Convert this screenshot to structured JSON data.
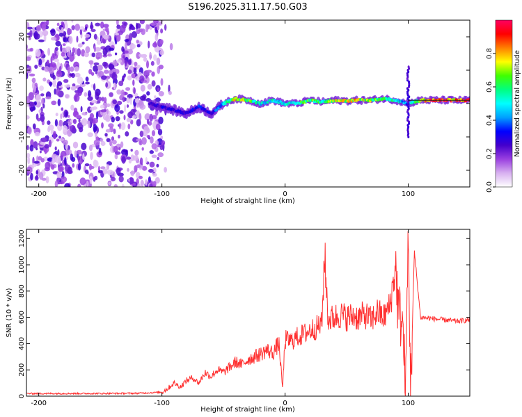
{
  "title": "S196.2025.311.17.50.G03",
  "chart_data": [
    {
      "type": "heatmap",
      "xlabel": "Height of straight line (km)",
      "ylabel": "Frequency (Hz)",
      "xlim": [
        -210,
        150
      ],
      "ylim": [
        -25,
        25
      ],
      "xticks": [
        -200,
        -100,
        0,
        100
      ],
      "yticks": [
        -20,
        -10,
        0,
        10,
        20
      ],
      "colorbar": {
        "label": "Normalized spectral amplitude",
        "range": [
          0,
          1
        ],
        "ticks": [
          "0.0",
          "0.2",
          "0.4",
          "0.6",
          "0.8"
        ],
        "colors": [
          "#ffffff",
          "#d8b0f0",
          "#9a40e0",
          "#4400cc",
          "#0000ff",
          "#00a0ff",
          "#00ffff",
          "#00ff80",
          "#40ff00",
          "#ffff00",
          "#ff8000",
          "#ff0000",
          "#ff0060"
        ]
      },
      "ridge": {
        "name": "frequency ridge",
        "x": [
          -110,
          -100,
          -90,
          -80,
          -70,
          -60,
          -50,
          -40,
          -30,
          -20,
          -10,
          0,
          10,
          20,
          30,
          40,
          50,
          60,
          70,
          80,
          90,
          100,
          110,
          120,
          130,
          140,
          150
        ],
        "y": [
          0,
          -1,
          -2,
          -3,
          -1,
          -3,
          0,
          1.5,
          1,
          0,
          1,
          0,
          0,
          1,
          0.5,
          1,
          0.8,
          1,
          1,
          1.5,
          1,
          0,
          1,
          1,
          1,
          1,
          1
        ],
        "amplitude": [
          0.25,
          0.3,
          0.3,
          0.3,
          0.35,
          0.3,
          0.5,
          0.8,
          0.7,
          0.5,
          0.55,
          0.5,
          0.6,
          0.7,
          0.6,
          0.75,
          0.75,
          0.8,
          0.7,
          0.6,
          0.55,
          0.4,
          0.85,
          0.95,
          0.95,
          0.9,
          0.9
        ]
      },
      "notes": "Broadband noise (amplitude ~0.1–0.25) fills all frequencies for heights < -100 km; single narrow ridge near 0 Hz for heights > -110 km; vertical streak near 100 km."
    },
    {
      "type": "line",
      "xlabel": "Height of straight line (km)",
      "ylabel": "SNR (10 * v/v)",
      "xlim": [
        -210,
        150
      ],
      "ylim": [
        0,
        1270
      ],
      "xticks": [
        -200,
        -100,
        0,
        100
      ],
      "yticks": [
        0,
        200,
        400,
        600,
        800,
        1000,
        1200
      ],
      "series": [
        {
          "name": "SNR",
          "color": "#ff3030",
          "x": [
            -210,
            -180,
            -150,
            -120,
            -100,
            -95,
            -90,
            -85,
            -80,
            -75,
            -70,
            -65,
            -60,
            -55,
            -50,
            -45,
            -40,
            -35,
            -30,
            -25,
            -20,
            -15,
            -10,
            -5,
            -2,
            0,
            5,
            10,
            15,
            20,
            25,
            30,
            32,
            35,
            40,
            45,
            50,
            55,
            60,
            65,
            70,
            75,
            80,
            85,
            90,
            92,
            95,
            98,
            100,
            102,
            105,
            110,
            120,
            130,
            140,
            150
          ],
          "y": [
            20,
            20,
            20,
            22,
            30,
            60,
            100,
            70,
            120,
            140,
            100,
            180,
            150,
            200,
            180,
            220,
            260,
            240,
            280,
            300,
            320,
            350,
            330,
            400,
            60,
            430,
            420,
            450,
            470,
            500,
            520,
            550,
            1090,
            580,
            600,
            620,
            600,
            610,
            600,
            620,
            580,
            640,
            600,
            680,
            1000,
            620,
            600,
            50,
            1250,
            60,
            1100,
            600,
            590,
            580,
            570,
            580
          ]
        }
      ]
    }
  ]
}
